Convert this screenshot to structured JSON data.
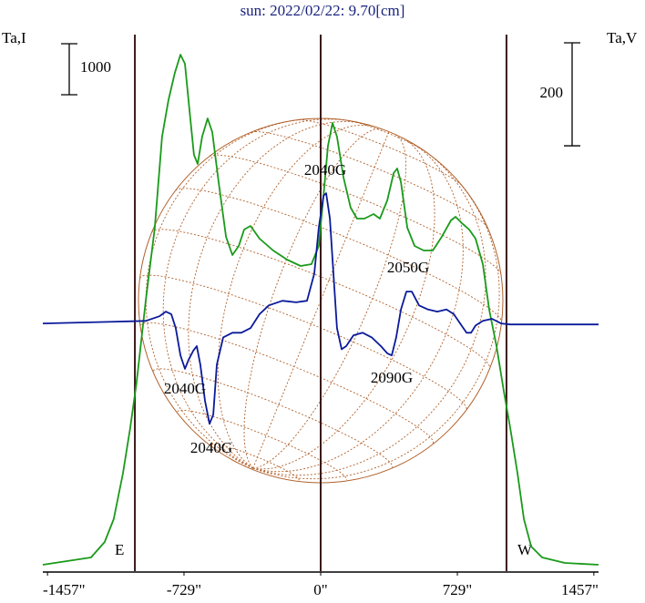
{
  "chart_data": {
    "type": "line",
    "title": "sun: 2022/02/22: 9.70[cm]",
    "y_label": "Ta,I",
    "y2_label": "Ta,V",
    "xlim": [
      -1482,
      1482
    ],
    "ylim": [
      0,
      10518
    ],
    "y2lim": [
      -481,
      561
    ],
    "xticks": [
      {
        "value": -1457,
        "label": "-1457\""
      },
      {
        "value": -729,
        "label": "-729\""
      },
      {
        "value": 0,
        "label": "0\""
      },
      {
        "value": 729,
        "label": "729\""
      },
      {
        "value": 1457,
        "label": "1457\""
      }
    ],
    "y_scale_bar": 1000,
    "y2_scale_bar": 200,
    "vertical_lines": [
      -991,
      0,
      991
    ],
    "limb_labels": [
      "E",
      "W"
    ],
    "annotations": [
      "2040G",
      "2050G",
      "2040G",
      "2090G",
      "2040G"
    ],
    "series": [
      {
        "color": "#1a9a1a",
        "axis": "y",
        "x": [
          -1482,
          -1225,
          -1152,
          -1104,
          -1055,
          -1016,
          -982,
          -933,
          -885,
          -846,
          -812,
          -778,
          -748,
          -724,
          -700,
          -676,
          -656,
          -632,
          -603,
          -578,
          -544,
          -505,
          -471,
          -437,
          -408,
          -374,
          -326,
          -253,
          -180,
          -107,
          -49,
          -10,
          15,
          39,
          63,
          87,
          122,
          160,
          194,
          233,
          282,
          316,
          355,
          389,
          408,
          428,
          462,
          501,
          549,
          598,
          646,
          695,
          719,
          753,
          792,
          826,
          865,
          899,
          938,
          977,
          1011,
          1050,
          1084,
          1123,
          1181,
          1302,
          1482
        ],
        "values": [
          125,
          268,
          571,
          1018,
          1911,
          2804,
          3696,
          5304,
          6732,
          8518,
          9232,
          9768,
          10125,
          9946,
          9054,
          8161,
          7982,
          8518,
          8875,
          8607,
          7625,
          6554,
          6196,
          6375,
          6696,
          6768,
          6518,
          6286,
          6107,
          5982,
          6018,
          6375,
          7357,
          8339,
          8786,
          8518,
          7714,
          7125,
          6911,
          6911,
          7000,
          6911,
          7268,
          7804,
          7893,
          7625,
          6732,
          6375,
          6286,
          6286,
          6554,
          6875,
          6946,
          6821,
          6696,
          6518,
          6018,
          5125,
          4411,
          3518,
          2804,
          1911,
          1018,
          482,
          268,
          161,
          125
        ]
      },
      {
        "color": "#0a1a9a",
        "axis": "y2",
        "x": [
          -1482,
          -1030,
          -933,
          -860,
          -826,
          -797,
          -773,
          -748,
          -724,
          -705,
          -680,
          -661,
          -642,
          -617,
          -593,
          -573,
          -554,
          -520,
          -471,
          -423,
          -374,
          -326,
          -277,
          -204,
          -131,
          -73,
          -34,
          -10,
          15,
          29,
          49,
          68,
          87,
          112,
          136,
          175,
          224,
          272,
          321,
          355,
          379,
          403,
          428,
          457,
          486,
          525,
          573,
          622,
          671,
          710,
          744,
          778,
          802,
          826,
          865,
          914,
          962,
          1011,
          1482
        ],
        "values": [
          0,
          4,
          5,
          14,
          23,
          18,
          -9,
          -62,
          -88,
          -71,
          -53,
          -44,
          -80,
          -150,
          -195,
          -177,
          -80,
          -27,
          -18,
          -18,
          -9,
          18,
          35,
          44,
          41,
          44,
          97,
          186,
          248,
          253,
          204,
          97,
          -9,
          -50,
          -44,
          -23,
          -18,
          -27,
          -44,
          -58,
          -62,
          -27,
          27,
          62,
          62,
          35,
          27,
          23,
          27,
          18,
          0,
          -18,
          -18,
          -4,
          5,
          9,
          0,
          -2,
          -2
        ]
      }
    ]
  }
}
